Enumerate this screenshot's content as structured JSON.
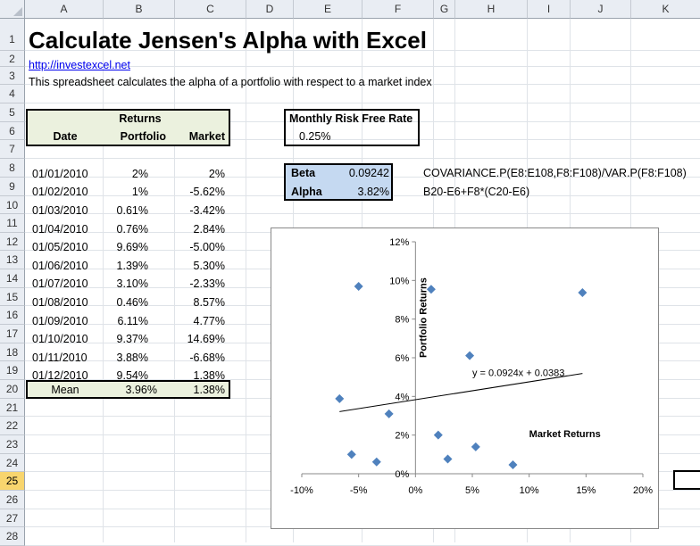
{
  "columns": [
    "A",
    "B",
    "C",
    "D",
    "E",
    "F",
    "G",
    "H",
    "I",
    "J",
    "K"
  ],
  "rows": [
    "1",
    "2",
    "3",
    "4",
    "5",
    "6",
    "7",
    "8",
    "9",
    "10",
    "11",
    "12",
    "13",
    "14",
    "15",
    "16",
    "17",
    "18",
    "19",
    "20",
    "21",
    "22",
    "23",
    "24",
    "25",
    "26",
    "27",
    "28"
  ],
  "selected_row": "25",
  "title": "Calculate Jensen's Alpha with Excel",
  "link": "http://investexcel.net",
  "description": "This spreadsheet calculates the alpha of a portfolio with respect to a market index",
  "table": {
    "returns_label": "Returns",
    "date_header": "Date",
    "portfolio_header": "Portfolio",
    "market_header": "Market",
    "rows": [
      {
        "date": "01/01/2010",
        "portfolio": "2%",
        "market": "2%"
      },
      {
        "date": "01/02/2010",
        "portfolio": "1%",
        "market": "-5.62%"
      },
      {
        "date": "01/03/2010",
        "portfolio": "0.61%",
        "market": "-3.42%"
      },
      {
        "date": "01/04/2010",
        "portfolio": "0.76%",
        "market": "2.84%"
      },
      {
        "date": "01/05/2010",
        "portfolio": "9.69%",
        "market": "-5.00%"
      },
      {
        "date": "01/06/2010",
        "portfolio": "1.39%",
        "market": "5.30%"
      },
      {
        "date": "01/07/2010",
        "portfolio": "3.10%",
        "market": "-2.33%"
      },
      {
        "date": "01/08/2010",
        "portfolio": "0.46%",
        "market": "8.57%"
      },
      {
        "date": "01/09/2010",
        "portfolio": "6.11%",
        "market": "4.77%"
      },
      {
        "date": "01/10/2010",
        "portfolio": "9.37%",
        "market": "14.69%"
      },
      {
        "date": "01/11/2010",
        "portfolio": "3.88%",
        "market": "-6.68%"
      },
      {
        "date": "01/12/2010",
        "portfolio": "9.54%",
        "market": "1.38%"
      }
    ],
    "mean_label": "Mean",
    "mean_portfolio": "3.96%",
    "mean_market": "1.38%"
  },
  "risk_free": {
    "label": "Monthly Risk Free Rate",
    "value": "0.25%"
  },
  "beta": {
    "label": "Beta",
    "value": "0.09242",
    "formula": "COVARIANCE.P(E8:E108,F8:F108)/VAR.P(F8:F108)"
  },
  "alpha": {
    "label": "Alpha",
    "value": "3.82%",
    "formula": "B20-E6+F8*(C20-E6)"
  },
  "colors": {
    "marker": "#4f81bd",
    "header_bg": "#e9edf3",
    "selected_row": "#f8d56e",
    "green_fill": "#ebf1de",
    "blue_fill": "#c5d9f1"
  },
  "chart_data": {
    "type": "scatter",
    "xlabel": "Market Returns",
    "ylabel": "Portfolio Returns",
    "xlim": [
      -0.1,
      0.2
    ],
    "ylim": [
      0,
      0.12
    ],
    "x_ticks": [
      "-10%",
      "-5%",
      "0%",
      "5%",
      "10%",
      "15%",
      "20%"
    ],
    "y_ticks": [
      "0%",
      "2%",
      "4%",
      "6%",
      "8%",
      "10%",
      "12%"
    ],
    "points": [
      {
        "x": 0.02,
        "y": 0.02
      },
      {
        "x": -0.0562,
        "y": 0.01
      },
      {
        "x": -0.0342,
        "y": 0.0061
      },
      {
        "x": 0.0284,
        "y": 0.0076
      },
      {
        "x": -0.05,
        "y": 0.0969
      },
      {
        "x": 0.053,
        "y": 0.0139
      },
      {
        "x": -0.0233,
        "y": 0.031
      },
      {
        "x": 0.0857,
        "y": 0.0046
      },
      {
        "x": 0.0477,
        "y": 0.0611
      },
      {
        "x": 0.1469,
        "y": 0.0937
      },
      {
        "x": -0.0668,
        "y": 0.0388
      },
      {
        "x": 0.0138,
        "y": 0.0954
      }
    ],
    "trendline": {
      "slope": 0.0924,
      "intercept": 0.0383,
      "label": "y = 0.0924x + 0.0383"
    },
    "grid": false
  }
}
